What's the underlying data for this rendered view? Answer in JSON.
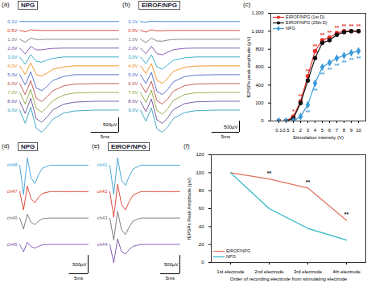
{
  "chart_data": [
    {
      "type": "trace",
      "panel_label": "(a)",
      "title": "NPG",
      "tick_labels": false,
      "x": [
        0,
        1,
        2,
        3,
        4,
        5,
        6,
        8,
        10,
        14,
        18
      ],
      "scale_bar": {
        "y": 500,
        "y_label": "500µV",
        "x": 5,
        "x_label": "5ms"
      },
      "series": [
        {
          "name": "0.1V",
          "color": "#3a7fd5",
          "values": [
            0,
            0,
            0,
            0,
            0,
            0,
            0,
            0,
            0,
            0,
            0
          ]
        },
        {
          "name": "0.5V",
          "color": "#d9382c",
          "values": [
            0,
            -50,
            20,
            0,
            0,
            0,
            0,
            0,
            0,
            0,
            0
          ]
        },
        {
          "name": "1.0V",
          "color": "#7a7a7a",
          "values": [
            0,
            -100,
            40,
            -10,
            -10,
            0,
            0,
            0,
            0,
            0,
            0
          ]
        },
        {
          "name": "2.0V",
          "color": "#7b4fb0",
          "values": [
            0,
            -200,
            60,
            -60,
            -60,
            -30,
            -10,
            0,
            0,
            0,
            0
          ]
        },
        {
          "name": "3.0V",
          "color": "#29a8c4",
          "values": [
            0,
            -250,
            80,
            -150,
            -180,
            -100,
            -50,
            0,
            0,
            0,
            0
          ]
        },
        {
          "name": "4.0V",
          "color": "#f08c1a",
          "values": [
            0,
            -300,
            100,
            -300,
            -350,
            -250,
            -120,
            -40,
            0,
            0,
            0
          ]
        },
        {
          "name": "5.0V",
          "color": "#4a66c8",
          "values": [
            0,
            -350,
            100,
            -450,
            -550,
            -400,
            -200,
            -60,
            0,
            0,
            0
          ]
        },
        {
          "name": "6.0V",
          "color": "#c0504d",
          "values": [
            0,
            -380,
            100,
            -500,
            -620,
            -450,
            -250,
            -80,
            -20,
            0,
            0
          ]
        },
        {
          "name": "7.0V",
          "color": "#8aa63d",
          "values": [
            0,
            -400,
            100,
            -550,
            -680,
            -500,
            -280,
            -90,
            -20,
            0,
            0
          ]
        },
        {
          "name": "8.0V",
          "color": "#6b4c9a",
          "values": [
            0,
            -420,
            100,
            -600,
            -720,
            -540,
            -300,
            -100,
            -30,
            0,
            0
          ]
        },
        {
          "name": "9.0V",
          "color": "#2f9fbf",
          "values": [
            0,
            -450,
            100,
            -620,
            -760,
            -560,
            -320,
            -100,
            -30,
            0,
            0
          ]
        }
      ]
    },
    {
      "type": "trace",
      "panel_label": "(b)",
      "title": "EIROF/NPG",
      "tick_labels": false,
      "x": [
        0,
        1,
        2,
        3,
        4,
        5,
        6,
        8,
        10,
        14,
        18
      ],
      "scale_bar": {
        "y": 500,
        "y_label": "500µV",
        "x": 5,
        "x_label": "5ms"
      },
      "series": [
        {
          "name": "0.1V",
          "color": "#3a7fd5",
          "values": [
            0,
            -30,
            10,
            0,
            0,
            0,
            0,
            0,
            0,
            0,
            0
          ]
        },
        {
          "name": "0.5V",
          "color": "#d9382c",
          "values": [
            0,
            -80,
            30,
            -20,
            -20,
            0,
            0,
            0,
            0,
            0,
            0
          ]
        },
        {
          "name": "1.0V",
          "color": "#7a7a7a",
          "values": [
            0,
            -150,
            50,
            -80,
            -90,
            -40,
            -10,
            0,
            0,
            0,
            0
          ]
        },
        {
          "name": "2.0V",
          "color": "#7b4fb0",
          "values": [
            0,
            -250,
            80,
            -250,
            -300,
            -180,
            -70,
            -10,
            0,
            0,
            0
          ]
        },
        {
          "name": "3.0V",
          "color": "#29a8c4",
          "values": [
            0,
            -300,
            100,
            -450,
            -550,
            -350,
            -150,
            -40,
            0,
            0,
            0
          ]
        },
        {
          "name": "4.0V",
          "color": "#f08c1a",
          "values": [
            0,
            -350,
            100,
            -650,
            -800,
            -550,
            -250,
            -70,
            -10,
            0,
            0
          ]
        },
        {
          "name": "5.0V",
          "color": "#4a66c8",
          "values": [
            0,
            -400,
            100,
            -750,
            -900,
            -650,
            -320,
            -90,
            -20,
            0,
            0
          ]
        },
        {
          "name": "6.0V",
          "color": "#c0504d",
          "values": [
            0,
            -420,
            100,
            -780,
            -930,
            -680,
            -340,
            -100,
            -20,
            0,
            0
          ]
        },
        {
          "name": "7.0V",
          "color": "#8aa63d",
          "values": [
            0,
            -450,
            100,
            -820,
            -980,
            -720,
            -360,
            -100,
            -20,
            0,
            0
          ]
        },
        {
          "name": "8.0V",
          "color": "#6b4c9a",
          "values": [
            0,
            -470,
            100,
            -840,
            -1000,
            -740,
            -370,
            -110,
            -30,
            0,
            0
          ]
        },
        {
          "name": "9.0V",
          "color": "#2f9fbf",
          "values": [
            0,
            -500,
            100,
            -850,
            -1000,
            -750,
            -380,
            -110,
            -30,
            0,
            0
          ]
        }
      ]
    },
    {
      "type": "line",
      "panel_label": "(c)",
      "x_label": "Stimulation intensity (V)",
      "y_label": "fEPSPs peak amplitude (µV)",
      "categories": [
        "0.1",
        "0.5",
        "1",
        "2",
        "3",
        "4",
        "5",
        "6",
        "7",
        "8",
        "9",
        "10"
      ],
      "ylim": [
        0,
        1200
      ],
      "yticks": [
        0,
        200,
        400,
        600,
        800,
        1000,
        1200
      ],
      "legend": "upper left",
      "series": [
        {
          "name": "EIROF/NPG (1st D)",
          "color": "#e8312b",
          "marker": "circle",
          "values": [
            0,
            0,
            50,
            220,
            500,
            780,
            900,
            930,
            980,
            1000,
            1000,
            1000
          ],
          "significance": [
            null,
            null,
            "*",
            "**",
            "**",
            "**",
            "**",
            "**",
            "**",
            "**",
            "**",
            "**"
          ]
        },
        {
          "name": "EIROF/NPG (25th D)",
          "color": "#111111",
          "marker": "circle",
          "values": [
            0,
            0,
            30,
            200,
            450,
            700,
            870,
            900,
            960,
            990,
            1000,
            1000
          ]
        },
        {
          "name": "NPG",
          "color": "#3b9ad9",
          "marker": "diamond",
          "values": [
            0,
            0,
            0,
            50,
            180,
            420,
            600,
            650,
            700,
            730,
            760,
            780
          ],
          "significance": [
            null,
            null,
            null,
            null,
            "**",
            "**",
            "**",
            "**",
            "**",
            "**",
            "**",
            "**"
          ]
        }
      ]
    },
    {
      "type": "trace",
      "panel_label": "(d)",
      "title": "NPG",
      "tick_labels": false,
      "x": [
        0,
        1,
        2,
        3,
        4,
        5,
        6,
        8,
        10,
        14,
        18
      ],
      "scale_bar": {
        "y": 500,
        "y_label": "500µV",
        "x": 5,
        "x_label": "5ms"
      },
      "series": [
        {
          "name": "ch48",
          "color": "#3a9fd5",
          "values": [
            0,
            -800,
            200,
            -350,
            -500,
            -250,
            -80,
            0,
            0,
            0,
            0
          ]
        },
        {
          "name": "ch47",
          "color": "#d9382c",
          "values": [
            0,
            -500,
            150,
            -200,
            -300,
            -150,
            -50,
            0,
            0,
            0,
            0
          ]
        },
        {
          "name": "ch46",
          "color": "#6f6f6f",
          "values": [
            0,
            -300,
            100,
            -120,
            -180,
            -80,
            -20,
            0,
            0,
            0,
            0
          ]
        },
        {
          "name": "ch45",
          "color": "#7b4fb0",
          "values": [
            0,
            -200,
            60,
            -60,
            -100,
            -50,
            -10,
            0,
            0,
            0,
            0
          ]
        }
      ]
    },
    {
      "type": "trace",
      "panel_label": "(e)",
      "title": "EIROF/NPG",
      "tick_labels": false,
      "x": [
        0,
        1,
        2,
        3,
        4,
        5,
        6,
        8,
        10,
        14,
        18
      ],
      "scale_bar": {
        "y": 500,
        "y_label": "500µV",
        "x": 5,
        "x_label": "5ms"
      },
      "series": [
        {
          "name": "ch41",
          "color": "#3a9fd5",
          "values": [
            0,
            -800,
            200,
            -400,
            -550,
            -300,
            -100,
            0,
            0,
            0,
            0
          ]
        },
        {
          "name": "ch42",
          "color": "#d9382c",
          "values": [
            0,
            -700,
            200,
            -350,
            -500,
            -270,
            -90,
            0,
            0,
            0,
            0
          ]
        },
        {
          "name": "ch43",
          "color": "#6f6f6f",
          "values": [
            0,
            -600,
            180,
            -320,
            -450,
            -240,
            -80,
            0,
            0,
            0,
            0
          ]
        },
        {
          "name": "ch44",
          "color": "#7b4fb0",
          "values": [
            0,
            -500,
            150,
            -200,
            -260,
            -140,
            -50,
            0,
            0,
            0,
            0
          ]
        }
      ]
    },
    {
      "type": "line",
      "panel_label": "(f)",
      "x_label": "Order of recording electrode from stimulating electrode",
      "y_label": "fEPSPs Peak Amplitude (µV)",
      "categories": [
        "1st electrode",
        "2nd electrode",
        "3rd electrode",
        "4th electrode"
      ],
      "ylim": [
        0,
        120
      ],
      "yticks": [
        0,
        20,
        40,
        60,
        80,
        100,
        120
      ],
      "legend": "lower left",
      "significance": [
        null,
        "**",
        "**",
        "**"
      ],
      "series": [
        {
          "name": "EIROF/NPG",
          "color": "#e07060",
          "values": [
            100,
            93,
            83,
            47
          ]
        },
        {
          "name": "NPG",
          "color": "#2ab5c8",
          "values": [
            100,
            60,
            38,
            25
          ]
        }
      ]
    }
  ]
}
